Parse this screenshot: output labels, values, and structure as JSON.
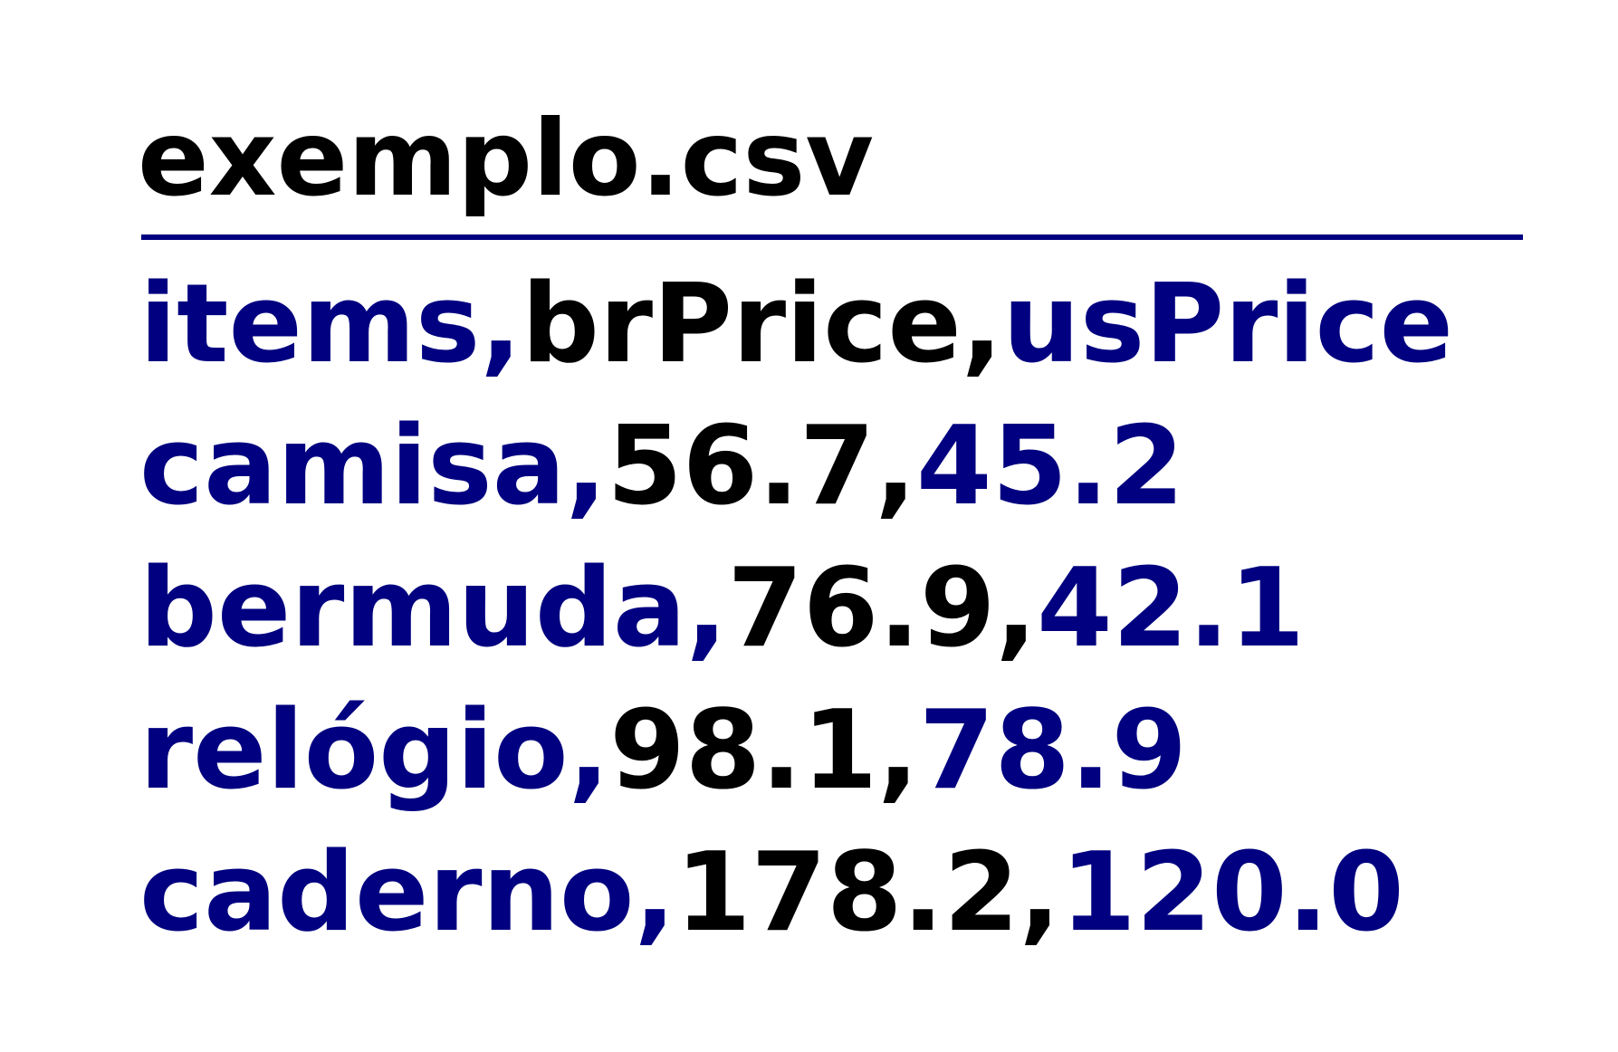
{
  "document": {
    "filename": "exemplo.csv",
    "colors": {
      "text_black": "#000000",
      "text_navy": "#000080",
      "divider": "#000080"
    },
    "rows": [
      {
        "label": "items,brPrice,usPrice",
        "segments": [
          {
            "text": "items,",
            "color": "text_navy"
          },
          {
            "text": "brPrice,",
            "color": "text_black"
          },
          {
            "text": "usPrice",
            "color": "text_navy"
          }
        ]
      },
      {
        "label": "camisa,56.7,45.2",
        "segments": [
          {
            "text": "camisa,",
            "color": "text_navy"
          },
          {
            "text": "56.7,",
            "color": "text_black"
          },
          {
            "text": "45.2",
            "color": "text_navy"
          }
        ]
      },
      {
        "label": "bermuda,76.9,42.1",
        "segments": [
          {
            "text": "bermuda,",
            "color": "text_navy"
          },
          {
            "text": "76.9,",
            "color": "text_black"
          },
          {
            "text": "42.1",
            "color": "text_navy"
          }
        ]
      },
      {
        "label": "relógio,98.1,78.9",
        "segments": [
          {
            "text": "relógio,",
            "color": "text_navy"
          },
          {
            "text": "98.1,",
            "color": "text_black"
          },
          {
            "text": "78.9",
            "color": "text_navy"
          }
        ]
      },
      {
        "label": "caderno,178.2,120.0",
        "segments": [
          {
            "text": "caderno,",
            "color": "text_navy"
          },
          {
            "text": "178.2,",
            "color": "text_black"
          },
          {
            "text": "120.0",
            "color": "text_navy"
          }
        ]
      }
    ]
  }
}
